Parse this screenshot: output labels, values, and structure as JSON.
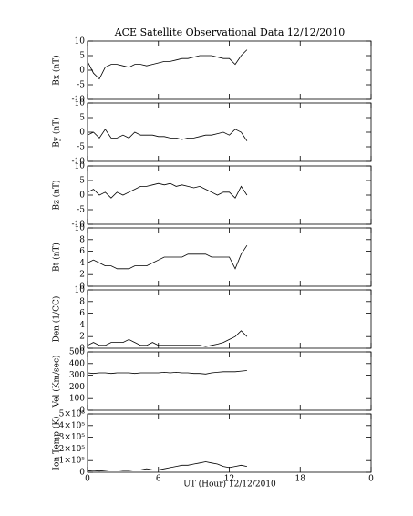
{
  "title": "ACE Satellite Observational Data   12/12/2010",
  "xlabel": "UT (Hour)  12/12/2010",
  "chart_data": [
    {
      "type": "line",
      "ylabel": "Bx (nT)",
      "color": "#000000",
      "x": [
        0,
        0.5,
        1,
        1.5,
        2,
        2.5,
        3,
        3.5,
        4,
        4.5,
        5,
        5.5,
        6,
        6.5,
        7,
        7.5,
        8,
        8.5,
        9,
        9.5,
        10,
        10.5,
        11,
        11.5,
        12,
        12.5,
        13,
        13.5
      ],
      "values": [
        3,
        -1,
        -3,
        1,
        2,
        2,
        1.5,
        1,
        2,
        2,
        1.5,
        2,
        2.5,
        3,
        3,
        3.5,
        4,
        4,
        4.5,
        5,
        5,
        5,
        4.5,
        4,
        4,
        2,
        5,
        7
      ],
      "xlim": [
        0,
        24
      ],
      "xticks": [
        0,
        6,
        12,
        18,
        {
          "value": 24,
          "label": "0"
        }
      ],
      "ylim": [
        -10,
        10
      ],
      "yticks": [
        -10,
        -5,
        0,
        5,
        10
      ]
    },
    {
      "type": "line",
      "ylabel": "By (nT)",
      "color": "#000000",
      "x": [
        0,
        0.5,
        1,
        1.5,
        2,
        2.5,
        3,
        3.5,
        4,
        4.5,
        5,
        5.5,
        6,
        6.5,
        7,
        7.5,
        8,
        8.5,
        9,
        9.5,
        10,
        10.5,
        11,
        11.5,
        12,
        12.5,
        13,
        13.5
      ],
      "values": [
        -1,
        0,
        -2,
        1,
        -2,
        -2,
        -1,
        -2,
        0,
        -1,
        -1,
        -1,
        -1.5,
        -1.5,
        -2,
        -2,
        -2.5,
        -2,
        -2,
        -1.5,
        -1,
        -1,
        -0.5,
        0,
        -1,
        1,
        0,
        -3
      ],
      "xlim": [
        0,
        24
      ],
      "xticks": [
        0,
        6,
        12,
        18,
        {
          "value": 24,
          "label": "0"
        }
      ],
      "ylim": [
        -10,
        10
      ],
      "yticks": [
        -10,
        -5,
        0,
        5,
        10
      ]
    },
    {
      "type": "line",
      "ylabel": "Bz (nT)",
      "color": "#000000",
      "x": [
        0,
        0.5,
        1,
        1.5,
        2,
        2.5,
        3,
        3.5,
        4,
        4.5,
        5,
        5.5,
        6,
        6.5,
        7,
        7.5,
        8,
        8.5,
        9,
        9.5,
        10,
        10.5,
        11,
        11.5,
        12,
        12.5,
        13,
        13.5
      ],
      "values": [
        1,
        2,
        0,
        1,
        -1,
        1,
        0,
        1,
        2,
        3,
        3,
        3.5,
        4,
        3.5,
        4,
        3,
        3.5,
        3,
        2.5,
        3,
        2,
        1,
        0,
        1,
        1,
        -1,
        3,
        0
      ],
      "xlim": [
        0,
        24
      ],
      "xticks": [
        0,
        6,
        12,
        18,
        {
          "value": 24,
          "label": "0"
        }
      ],
      "ylim": [
        -10,
        10
      ],
      "yticks": [
        -10,
        -5,
        0,
        5,
        10
      ]
    },
    {
      "type": "line",
      "ylabel": "Bt (nT)",
      "color": "#000000",
      "x": [
        0,
        0.5,
        1,
        1.5,
        2,
        2.5,
        3,
        3.5,
        4,
        4.5,
        5,
        5.5,
        6,
        6.5,
        7,
        7.5,
        8,
        8.5,
        9,
        9.5,
        10,
        10.5,
        11,
        11.5,
        12,
        12.5,
        13,
        13.5
      ],
      "values": [
        4,
        4.5,
        4,
        3.5,
        3.5,
        3,
        3,
        3,
        3.5,
        3.5,
        3.5,
        4,
        4.5,
        5,
        5,
        5,
        5,
        5.5,
        5.5,
        5.5,
        5.5,
        5,
        5,
        5,
        5,
        3,
        5.5,
        7
      ],
      "xlim": [
        0,
        24
      ],
      "xticks": [
        0,
        6,
        12,
        18,
        {
          "value": 24,
          "label": "0"
        }
      ],
      "ylim": [
        0,
        10
      ],
      "yticks": [
        0,
        2,
        4,
        6,
        8,
        10
      ]
    },
    {
      "type": "line",
      "ylabel": "Den (1/CC)",
      "color": "#000000",
      "x": [
        0,
        0.5,
        1,
        1.5,
        2,
        2.5,
        3,
        3.5,
        4,
        4.5,
        5,
        5.5,
        6,
        6.5,
        7,
        7.5,
        8,
        8.5,
        9,
        9.5,
        10,
        10.5,
        11,
        11.5,
        12,
        12.5,
        13,
        13.5
      ],
      "values": [
        0.5,
        1,
        0.5,
        0.5,
        1,
        1,
        1,
        1.5,
        1,
        0.5,
        0.5,
        1,
        0.5,
        0.5,
        0.5,
        0.5,
        0.5,
        0.5,
        0.5,
        0.5,
        0.3,
        0.5,
        0.7,
        1,
        1.5,
        2,
        3,
        2
      ],
      "xlim": [
        0,
        24
      ],
      "xticks": [
        0,
        6,
        12,
        18,
        {
          "value": 24,
          "label": "0"
        }
      ],
      "ylim": [
        0,
        10
      ],
      "yticks": [
        0,
        2,
        4,
        6,
        8,
        10
      ]
    },
    {
      "type": "line",
      "ylabel": "Vel (Km/sec)",
      "color": "#000000",
      "x": [
        0,
        0.5,
        1,
        1.5,
        2,
        2.5,
        3,
        3.5,
        4,
        4.5,
        5,
        5.5,
        6,
        6.5,
        7,
        7.5,
        8,
        8.5,
        9,
        9.5,
        10,
        10.5,
        11,
        11.5,
        12,
        12.5,
        13,
        13.5
      ],
      "values": [
        320,
        315,
        320,
        320,
        315,
        320,
        320,
        320,
        315,
        320,
        320,
        320,
        320,
        325,
        320,
        325,
        320,
        320,
        315,
        315,
        310,
        320,
        325,
        330,
        330,
        330,
        335,
        340
      ],
      "xlim": [
        0,
        24
      ],
      "xticks": [
        0,
        6,
        12,
        18,
        {
          "value": 24,
          "label": "0"
        }
      ],
      "ylim": [
        0,
        500
      ],
      "yticks": [
        0,
        100,
        200,
        300,
        400,
        500
      ]
    },
    {
      "type": "line",
      "ylabel": "Ion Temp (K)",
      "color": "#000000",
      "x": [
        0,
        0.5,
        1,
        1.5,
        2,
        2.5,
        3,
        3.5,
        4,
        4.5,
        5,
        5.5,
        6,
        6.5,
        7,
        7.5,
        8,
        8.5,
        9,
        9.5,
        10,
        10.5,
        11,
        11.5,
        12,
        12.5,
        13,
        13.5
      ],
      "values": [
        10000,
        15000,
        10000,
        15000,
        20000,
        20000,
        15000,
        15000,
        20000,
        20000,
        30000,
        20000,
        20000,
        30000,
        40000,
        50000,
        60000,
        60000,
        70000,
        80000,
        90000,
        80000,
        70000,
        50000,
        40000,
        50000,
        60000,
        50000
      ],
      "xlim": [
        0,
        24
      ],
      "xticks": [
        0,
        6,
        12,
        18,
        {
          "value": 24,
          "label": "0"
        }
      ],
      "ylim": [
        0,
        500000
      ],
      "yticks": [
        0,
        {
          "value": 100000,
          "label": "1×10⁵"
        },
        {
          "value": 200000,
          "label": "2×10⁵"
        },
        {
          "value": 300000,
          "label": "3×10⁵"
        },
        {
          "value": 400000,
          "label": "4×10⁵"
        },
        {
          "value": 500000,
          "label": "5×10⁵"
        }
      ]
    }
  ]
}
